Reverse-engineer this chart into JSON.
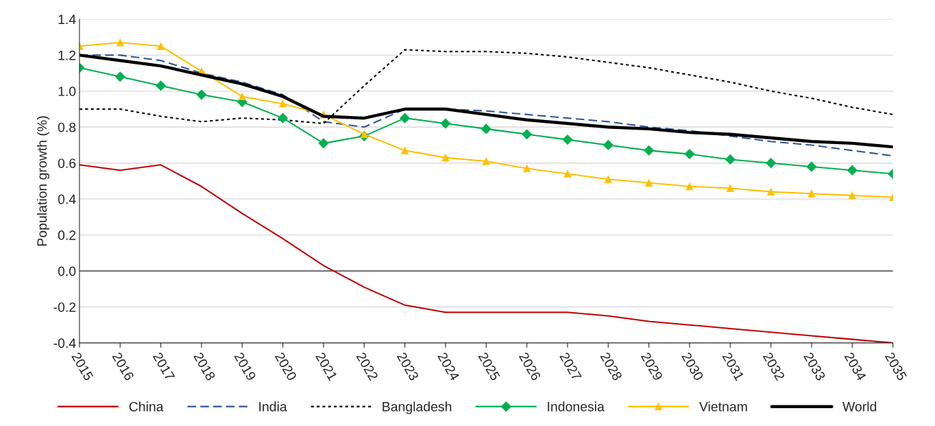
{
  "chart_data": {
    "type": "line",
    "ylabel": "Population growth (%)",
    "categories": [
      "2015",
      "2016",
      "2017",
      "2018",
      "2019",
      "2020",
      "2021",
      "2022",
      "2023",
      "2024",
      "2025",
      "2026",
      "2027",
      "2028",
      "2029",
      "2030",
      "2031",
      "2032",
      "2033",
      "2034",
      "2035"
    ],
    "ylim": [
      -0.4,
      1.4
    ],
    "yticks": [
      {
        "value": -0.4,
        "label": "-0.4"
      },
      {
        "value": -0.2,
        "label": "-0.2"
      },
      {
        "value": 0,
        "label": "0.0"
      },
      {
        "value": 0.2,
        "label": "0.2"
      },
      {
        "value": 0.4,
        "label": "0.4"
      },
      {
        "value": 0.6,
        "label": "0.6"
      },
      {
        "value": 0.8,
        "label": "0.8"
      },
      {
        "value": 1.0,
        "label": "1.0"
      },
      {
        "value": 1.2,
        "label": "1.2"
      },
      {
        "value": 1.4,
        "label": "1.4"
      }
    ],
    "grid": "y",
    "legend": "bottom",
    "series": [
      {
        "name": "China",
        "color": "#c00000",
        "line_style": "solid",
        "marker": "none",
        "values": [
          0.59,
          0.56,
          0.59,
          0.47,
          0.32,
          0.18,
          0.03,
          -0.09,
          -0.19,
          -0.23,
          -0.23,
          -0.23,
          -0.23,
          -0.25,
          -0.28,
          -0.3,
          -0.32,
          -0.34,
          -0.36,
          -0.38,
          -0.4
        ]
      },
      {
        "name": "India",
        "color": "#2f5597",
        "line_style": "dashed",
        "marker": "none",
        "values": [
          1.2,
          1.2,
          1.17,
          1.1,
          1.05,
          0.98,
          0.83,
          0.8,
          0.9,
          0.9,
          0.89,
          0.87,
          0.85,
          0.83,
          0.8,
          0.78,
          0.75,
          0.72,
          0.7,
          0.67,
          0.64
        ]
      },
      {
        "name": "Bangladesh",
        "color": "#000000",
        "line_style": "dotted",
        "marker": "none",
        "values": [
          0.9,
          0.9,
          0.86,
          0.83,
          0.85,
          0.84,
          0.82,
          1.03,
          1.23,
          1.22,
          1.22,
          1.21,
          1.19,
          1.16,
          1.13,
          1.09,
          1.05,
          1.0,
          0.96,
          0.91,
          0.87
        ]
      },
      {
        "name": "Indonesia",
        "color": "#00b050",
        "line_style": "solid",
        "marker": "diamond",
        "values": [
          1.13,
          1.08,
          1.03,
          0.98,
          0.94,
          0.85,
          0.71,
          0.75,
          0.85,
          0.82,
          0.79,
          0.76,
          0.73,
          0.7,
          0.67,
          0.65,
          0.62,
          0.6,
          0.58,
          0.56,
          0.54
        ]
      },
      {
        "name": "Vietnam",
        "color": "#ffc000",
        "line_style": "solid",
        "marker": "triangle",
        "values": [
          1.25,
          1.27,
          1.25,
          1.11,
          0.97,
          0.93,
          0.87,
          0.76,
          0.67,
          0.63,
          0.61,
          0.57,
          0.54,
          0.51,
          0.49,
          0.47,
          0.46,
          0.44,
          0.43,
          0.42,
          0.41
        ]
      },
      {
        "name": "World",
        "color": "#000000",
        "line_style": "solid",
        "marker": "none",
        "values": [
          1.2,
          1.17,
          1.14,
          1.09,
          1.04,
          0.97,
          0.86,
          0.85,
          0.9,
          0.9,
          0.87,
          0.84,
          0.82,
          0.8,
          0.79,
          0.77,
          0.76,
          0.74,
          0.72,
          0.71,
          0.69
        ]
      }
    ]
  }
}
